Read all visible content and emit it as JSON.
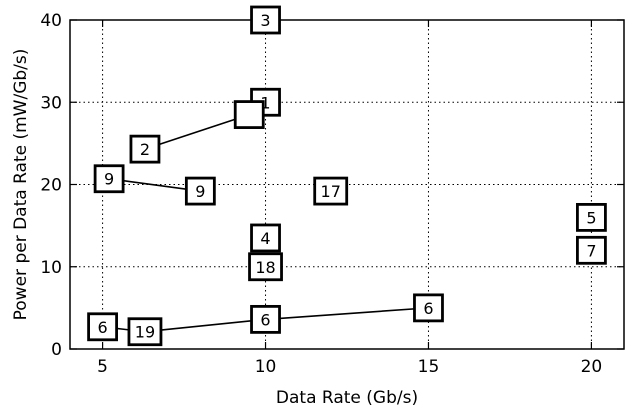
{
  "chart_data": {
    "type": "scatter",
    "title": "",
    "xlabel": "Data Rate (Gb/s)",
    "ylabel": "Power per Data Rate (mW/Gb/s)",
    "xlim": [
      4,
      21
    ],
    "ylim": [
      0,
      40
    ],
    "xticks": [
      5,
      10,
      15,
      20
    ],
    "yticks": [
      0,
      10,
      20,
      30,
      40
    ],
    "grid": true,
    "grid_style": "dotted",
    "marker": "numbered-square",
    "points": [
      {
        "label": "3",
        "x": 10,
        "y": 40
      },
      {
        "label": "1",
        "x": 10,
        "y": 30
      },
      {
        "label": "",
        "x": 9.5,
        "y": 28.5
      },
      {
        "label": "2",
        "x": 6.3,
        "y": 24.3
      },
      {
        "label": "9",
        "x": 5.2,
        "y": 20.7
      },
      {
        "label": "9",
        "x": 8,
        "y": 19.2
      },
      {
        "label": "17",
        "x": 12,
        "y": 19.2
      },
      {
        "label": "5",
        "x": 20,
        "y": 16
      },
      {
        "label": "4",
        "x": 10,
        "y": 13.5
      },
      {
        "label": "7",
        "x": 20,
        "y": 12
      },
      {
        "label": "18",
        "x": 10,
        "y": 10
      },
      {
        "label": "6",
        "x": 5,
        "y": 2.7
      },
      {
        "label": "19",
        "x": 6.3,
        "y": 2.1
      },
      {
        "label": "6",
        "x": 10,
        "y": 3.6
      },
      {
        "label": "6",
        "x": 15,
        "y": 5
      }
    ],
    "lines": [
      [
        [
          6.3,
          24.3
        ],
        [
          9.5,
          28.5
        ]
      ],
      [
        [
          5.2,
          20.7
        ],
        [
          8,
          19.2
        ]
      ],
      [
        [
          5,
          2.7
        ],
        [
          6.3,
          2.1
        ],
        [
          10,
          3.6
        ],
        [
          15,
          5
        ]
      ]
    ]
  }
}
